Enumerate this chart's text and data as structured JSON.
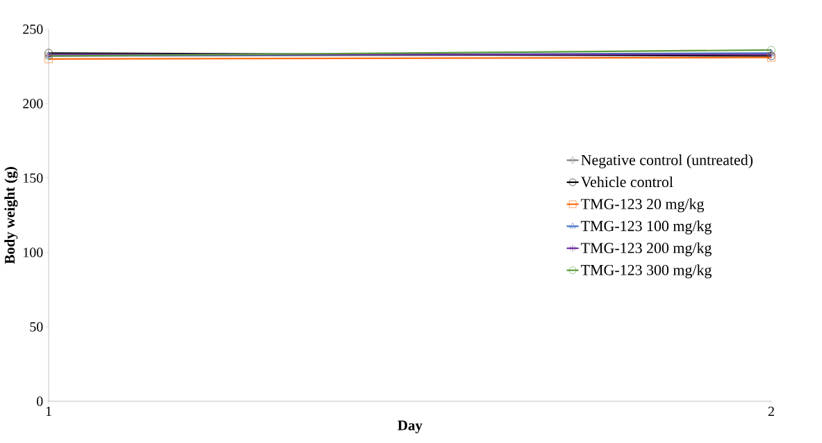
{
  "chart_data": {
    "type": "line",
    "xlabel": "Day",
    "ylabel": "Body weight (g)",
    "x": [
      1,
      2
    ],
    "xlim": [
      1,
      2
    ],
    "xticks": [
      1,
      2
    ],
    "ylim": [
      0,
      250
    ],
    "yticks": [
      0,
      50,
      100,
      150,
      200,
      250
    ],
    "grid": false,
    "legend": "right",
    "line_style": "solid",
    "series": [
      {
        "name": "Negative control (untreated)",
        "color": "#808080",
        "marker": "diamond",
        "values": [
          232,
          233
        ]
      },
      {
        "name": "Vehicle control",
        "color": "#000000",
        "marker": "circle",
        "values": [
          234,
          232
        ]
      },
      {
        "name": "TMG-123 20 mg/kg",
        "color": "#ff6a10",
        "marker": "square",
        "values": [
          230,
          231
        ]
      },
      {
        "name": "TMG-123 100 mg/kg",
        "color": "#4472c4",
        "marker": "triangle",
        "values": [
          232,
          234
        ]
      },
      {
        "name": "TMG-123 200 mg/kg",
        "color": "#7030a0",
        "marker": "cross",
        "values": [
          233,
          233
        ]
      },
      {
        "name": "TMG-123 300 mg/kg",
        "color": "#5b9a3a",
        "marker": "circle",
        "values": [
          232,
          236
        ]
      }
    ]
  }
}
